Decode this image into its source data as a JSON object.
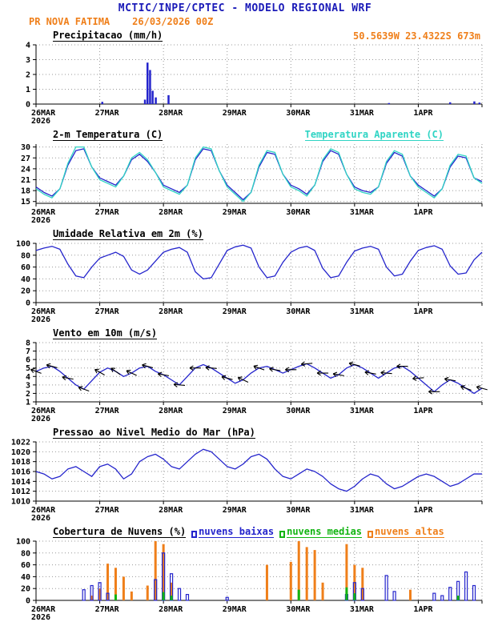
{
  "header": {
    "title": "MCTIC/INPE/CPTEC - MODELO REGIONAL WRF",
    "station": "PR NOVA FATIMA",
    "run_time": "26/03/2026 00Z",
    "location": "50.5639W 23.4322S 673m"
  },
  "colors": {
    "title_blue": "#1a1ab8",
    "orange": "#ef7f1a",
    "line_blue": "#2424cc",
    "cyan": "#2fd4c4",
    "green": "#12b412",
    "black": "#000000",
    "grid": "#999999"
  },
  "x_axis": {
    "span_days": 7,
    "tick_labels": [
      "26MAR",
      "27MAR",
      "28MAR",
      "29MAR",
      "30MAR",
      "31MAR",
      "1APR"
    ],
    "year_label": "2026"
  },
  "chart_data": [
    {
      "type": "bar",
      "title": "Precipitacao (mm/h)",
      "ylabel": "mm/h",
      "ylim": [
        0,
        4
      ],
      "yticks": [
        0,
        1,
        2,
        3,
        4
      ],
      "bars": [
        {
          "name": "precipitacao",
          "color_key": "line_blue",
          "width": 2.5,
          "filled": true,
          "points": [
            [
              1.04,
              0.15
            ],
            [
              1.71,
              0.3
            ],
            [
              1.75,
              2.8
            ],
            [
              1.79,
              2.3
            ],
            [
              1.83,
              0.9
            ],
            [
              1.88,
              0.45
            ],
            [
              2.08,
              0.6
            ],
            [
              5.54,
              0.07
            ],
            [
              6.5,
              0.12
            ],
            [
              6.88,
              0.18
            ],
            [
              6.96,
              0.1
            ]
          ]
        }
      ]
    },
    {
      "type": "line",
      "title": "2-m Temperatura (C)",
      "legend": [
        {
          "label": "Temperatura Aparente (C)",
          "color_key": "cyan"
        }
      ],
      "ylim": [
        14.5,
        30.8
      ],
      "yticks": [
        15,
        18,
        21,
        24,
        27,
        30
      ],
      "series": [
        {
          "name": "2-m Temperatura",
          "color_key": "line_blue",
          "step_days": 0.125,
          "values": [
            19.0,
            17.5,
            16.5,
            18.5,
            25.0,
            29.0,
            29.5,
            24.5,
            21.5,
            20.5,
            19.5,
            22.0,
            26.5,
            28.0,
            26.0,
            23.0,
            19.5,
            18.5,
            17.5,
            19.5,
            26.5,
            29.5,
            29.0,
            23.5,
            19.5,
            17.5,
            15.5,
            17.5,
            24.5,
            28.5,
            28.0,
            22.5,
            19.5,
            18.5,
            17.0,
            19.5,
            26.0,
            29.0,
            28.0,
            22.5,
            19.0,
            18.0,
            17.5,
            19.0,
            25.5,
            28.5,
            27.5,
            22.0,
            19.5,
            18.0,
            16.5,
            18.5,
            24.5,
            27.5,
            27.0,
            21.5,
            20.5
          ]
        },
        {
          "name": "Temperatura Aparente",
          "color_key": "cyan",
          "step_days": 0.125,
          "values": [
            18.5,
            17.0,
            16.0,
            18.5,
            25.5,
            30.0,
            30.0,
            24.5,
            21.0,
            20.0,
            19.0,
            22.0,
            27.0,
            28.5,
            26.5,
            23.0,
            19.0,
            18.0,
            17.0,
            19.5,
            27.0,
            30.0,
            29.5,
            23.5,
            19.0,
            17.0,
            15.0,
            17.5,
            25.0,
            29.0,
            28.5,
            22.5,
            19.0,
            18.0,
            16.5,
            19.5,
            26.5,
            29.5,
            28.5,
            22.5,
            18.5,
            17.5,
            17.0,
            19.0,
            26.0,
            29.0,
            28.0,
            22.0,
            19.0,
            17.5,
            16.0,
            18.5,
            25.0,
            28.0,
            27.5,
            21.5,
            20.0
          ]
        }
      ]
    },
    {
      "type": "line",
      "title": "Umidade Relativa em 2m (%)",
      "ylim": [
        0,
        100
      ],
      "yticks": [
        0,
        20,
        40,
        60,
        80,
        100
      ],
      "series": [
        {
          "name": "Umidade Relativa",
          "color_key": "line_blue",
          "step_days": 0.125,
          "values": [
            88,
            92,
            95,
            90,
            65,
            45,
            42,
            60,
            75,
            80,
            85,
            78,
            55,
            48,
            55,
            70,
            85,
            90,
            93,
            85,
            52,
            40,
            42,
            65,
            88,
            94,
            97,
            92,
            60,
            42,
            45,
            68,
            85,
            92,
            95,
            88,
            58,
            42,
            45,
            68,
            87,
            92,
            95,
            90,
            60,
            45,
            48,
            70,
            88,
            93,
            96,
            90,
            62,
            48,
            50,
            72,
            85
          ]
        }
      ]
    },
    {
      "type": "line",
      "title": "Vento em 10m (m/s)",
      "ylim": [
        1,
        8
      ],
      "yticks": [
        1,
        2,
        3,
        4,
        5,
        6,
        7,
        8
      ],
      "series": [
        {
          "name": "Vento 10m",
          "color_key": "line_blue",
          "step_days": 0.125,
          "values": [
            4.6,
            5.0,
            5.2,
            4.6,
            3.8,
            3.0,
            2.5,
            3.5,
            4.5,
            5.0,
            4.6,
            4.0,
            4.4,
            5.0,
            5.2,
            4.6,
            4.2,
            3.6,
            3.0,
            4.0,
            5.0,
            5.4,
            5.0,
            4.4,
            3.8,
            3.2,
            3.6,
            4.4,
            5.0,
            5.2,
            4.8,
            4.4,
            4.8,
            5.2,
            5.5,
            5.0,
            4.4,
            3.8,
            4.2,
            5.0,
            5.4,
            5.0,
            4.4,
            3.8,
            4.4,
            5.0,
            5.2,
            4.6,
            3.8,
            3.0,
            2.2,
            3.0,
            3.6,
            3.2,
            2.6,
            2.0,
            2.6
          ]
        }
      ],
      "arrows": {
        "every": 2,
        "color_key": "black",
        "angles": [
          200,
          195,
          190,
          200,
          210,
          215,
          205,
          195,
          190,
          185,
          180,
          185,
          195,
          205,
          200,
          190,
          180,
          175,
          180,
          190,
          195,
          190,
          185,
          180,
          175,
          180,
          190,
          200,
          195
        ]
      }
    },
    {
      "type": "line",
      "title": "Pressao ao Nivel Medio do Mar (hPa)",
      "ylim": [
        1010,
        1022
      ],
      "yticks": [
        1010,
        1012,
        1014,
        1016,
        1018,
        1020,
        1022
      ],
      "series": [
        {
          "name": "Pressao",
          "color_key": "line_blue",
          "step_days": 0.125,
          "values": [
            1016,
            1015.5,
            1014.5,
            1015,
            1016.5,
            1017,
            1016,
            1015,
            1017,
            1017.5,
            1016.5,
            1014.5,
            1015.5,
            1018,
            1019,
            1019.5,
            1018.5,
            1017,
            1016.5,
            1018,
            1019.5,
            1020.5,
            1020,
            1018.5,
            1017,
            1016.5,
            1017.5,
            1019,
            1019.5,
            1018.5,
            1016.5,
            1015,
            1014.5,
            1015.5,
            1016.5,
            1016,
            1015,
            1013.5,
            1012.5,
            1012,
            1013,
            1014.5,
            1015.5,
            1015,
            1013.5,
            1012.5,
            1013,
            1014,
            1015,
            1015.5,
            1015,
            1014,
            1013,
            1013.5,
            1014.5,
            1015.5,
            1015.5
          ]
        }
      ]
    },
    {
      "type": "bar",
      "title": "Cobertura de Nuvens (%)",
      "legend": [
        {
          "label": "nuvens baixas",
          "color_key": "line_blue"
        },
        {
          "label": "nuvens medias",
          "color_key": "green"
        },
        {
          "label": "nuvens altas",
          "color_key": "orange"
        }
      ],
      "ylim": [
        0,
        100
      ],
      "yticks": [
        0,
        20,
        40,
        60,
        80,
        100
      ],
      "bars": [
        {
          "name": "nuvens altas",
          "color_key": "orange",
          "width": 3,
          "filled": true,
          "points": [
            [
              0.875,
              8
            ],
            [
              1.0,
              20
            ],
            [
              1.125,
              62
            ],
            [
              1.25,
              55
            ],
            [
              1.375,
              40
            ],
            [
              1.5,
              15
            ],
            [
              1.75,
              25
            ],
            [
              1.875,
              100
            ],
            [
              2.0,
              95
            ],
            [
              2.125,
              30
            ],
            [
              3.625,
              60
            ],
            [
              4.0,
              65
            ],
            [
              4.125,
              100
            ],
            [
              4.25,
              90
            ],
            [
              4.375,
              85
            ],
            [
              4.5,
              30
            ],
            [
              4.875,
              95
            ],
            [
              5.0,
              60
            ],
            [
              5.125,
              55
            ],
            [
              5.875,
              18
            ]
          ]
        },
        {
          "name": "nuvens baixas",
          "color_key": "line_blue",
          "width": 3,
          "filled": false,
          "points": [
            [
              0.75,
              18
            ],
            [
              0.875,
              25
            ],
            [
              1.0,
              30
            ],
            [
              1.125,
              12
            ],
            [
              1.875,
              35
            ],
            [
              2.0,
              80
            ],
            [
              2.125,
              45
            ],
            [
              2.25,
              20
            ],
            [
              2.375,
              10
            ],
            [
              3.0,
              5
            ],
            [
              4.875,
              10
            ],
            [
              5.0,
              30
            ],
            [
              5.125,
              20
            ],
            [
              5.5,
              42
            ],
            [
              5.625,
              15
            ],
            [
              6.25,
              12
            ],
            [
              6.375,
              8
            ],
            [
              6.5,
              22
            ],
            [
              6.625,
              32
            ],
            [
              6.75,
              48
            ],
            [
              6.875,
              25
            ]
          ]
        },
        {
          "name": "nuvens medias",
          "color_key": "green",
          "width": 3,
          "filled": true,
          "points": [
            [
              1.25,
              10
            ],
            [
              2.0,
              14
            ],
            [
              2.125,
              8
            ],
            [
              4.125,
              18
            ],
            [
              4.875,
              22
            ],
            [
              5.0,
              12
            ],
            [
              6.625,
              8
            ]
          ]
        }
      ]
    }
  ]
}
